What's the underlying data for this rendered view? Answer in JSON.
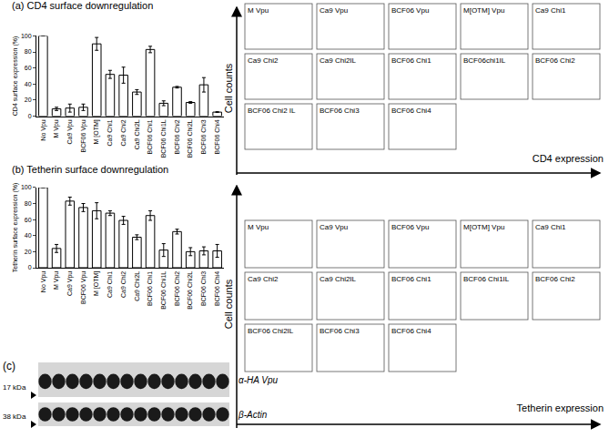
{
  "chart_data": [
    {
      "type": "bar",
      "title": "(a) CD4 surface downregulation",
      "y_label": "CD4 surface expression (%)",
      "categories": [
        "No Vpu",
        "M Vpu",
        "Ca9 Vpu",
        "BCF06 Vpu",
        "M [OTM]",
        "Ca9 Chi1",
        "Ca9 Chi2",
        "Ca9 Chi2L",
        "BCF06 Chi1",
        "BCF06 Chi1L",
        "BCF06 Chi2",
        "BCF06 Chi2L",
        "BCF06 Chi3",
        "BCF06 Chi4"
      ],
      "values": [
        100,
        9,
        10,
        11,
        90,
        52,
        51,
        30,
        83,
        16,
        36,
        17,
        39,
        5
      ],
      "errors": [
        0,
        2,
        5,
        4,
        8,
        5,
        10,
        3,
        4,
        3,
        1,
        1,
        9,
        0.5
      ],
      "color": "#ffffff",
      "ylim": [
        0,
        100
      ],
      "yticks": [
        0,
        20,
        40,
        60,
        80,
        100
      ],
      "grid": false
    },
    {
      "type": "bar",
      "title": "(b) Tetherin surface downregulation",
      "y_label": "Tetherin surface expression (%)",
      "categories": [
        "No Vpu",
        "M Vpu",
        "Ca9 Vpu",
        "BCF06 Vpu",
        "M [OTM]",
        "Ca9 Chi1",
        "Ca9 Chi2",
        "Ca9 Chi2L",
        "BCF06 Chi1",
        "BCF06 Chi1L",
        "BCF06 Chi2",
        "BCF06 Chi2L",
        "BCF06 Chi3",
        "BCF06 Chi4"
      ],
      "values": [
        100,
        24,
        83,
        75,
        71,
        68,
        59,
        38,
        65,
        22,
        45,
        20,
        21,
        21
      ],
      "errors": [
        0,
        5,
        5,
        5,
        10,
        3,
        5,
        3,
        6,
        8,
        3,
        5,
        5,
        8
      ],
      "color": "#ffffff",
      "ylim": [
        0,
        100
      ],
      "yticks": [
        0,
        20,
        40,
        60,
        80,
        100
      ],
      "grid": false
    }
  ],
  "histograms": [
    {
      "x_label": "CD4 expression",
      "y_label": "Cell counts",
      "panels": [
        "M Vpu",
        "Ca9 Vpu",
        "BCF06 Vpu",
        "M[OTM] Vpu",
        "Ca9 Chi1",
        "Ca9 Chi2",
        "Ca9 Chi2IL",
        "BCF06 Chi1",
        "BCF06chi1IL",
        "BCF06 Chi2",
        "BCF06 Chi2 IL",
        "BCF06 Chi3",
        "BCF06 Chi4"
      ]
    },
    {
      "x_label": "Tetherin expression",
      "y_label": "Cell counts",
      "panels": [
        "M Vpu",
        "Ca9 Vpu",
        "BCF06 Vpu",
        "M[OTM] Vpu",
        "Ca9 Chi1",
        "Ca9 Chi2",
        "Ca9 Chi2IL",
        "BCF06 Chi1",
        "BCF06 Chi1IL",
        "BCF06 Chi2",
        "BCF06 Chi2IL",
        "BCF06 Chi3",
        "BCF06 Chi4"
      ]
    }
  ],
  "blot": {
    "title": "(c)",
    "rows": [
      {
        "marker": "17 kDa",
        "label": "α-HA Vpu"
      },
      {
        "marker": "38 kDa",
        "label": "β-Actin"
      }
    ]
  }
}
